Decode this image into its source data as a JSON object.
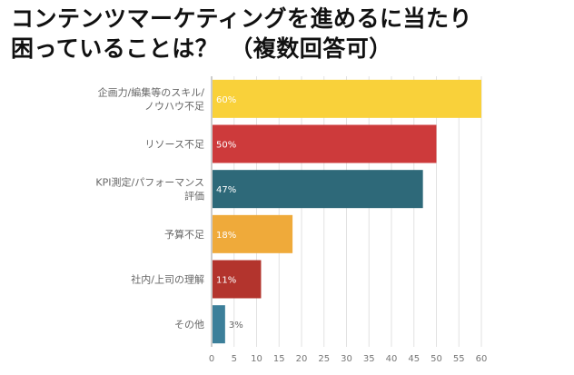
{
  "title_lines": [
    "コンテンツマーケティングを進めるに当たり",
    "困っていることは？　（複数回答可）"
  ],
  "chart_data": {
    "type": "bar",
    "orientation": "horizontal",
    "title": "コンテンツマーケティングを進めるに当たり困っていることは？　（複数回答可）",
    "categories": [
      [
        "企画力/編集等のスキル/",
        "ノウハウ不足"
      ],
      [
        "リソース不足"
      ],
      [
        "KPI測定/パフォーマンス",
        "評価"
      ],
      [
        "予算不足"
      ],
      [
        "社内/上司の理解"
      ],
      [
        "その他"
      ]
    ],
    "values": [
      60,
      50,
      47,
      18,
      11,
      3
    ],
    "value_labels": [
      "60%",
      "50%",
      "47%",
      "18%",
      "11%",
      "3%"
    ],
    "colors": [
      "#f9d13a",
      "#cd3a3b",
      "#2e6979",
      "#efaa3a",
      "#b3342d",
      "#3c7f9a"
    ],
    "xlim": [
      0,
      60
    ],
    "xticks": [
      0,
      5,
      10,
      15,
      20,
      25,
      30,
      35,
      40,
      45,
      50,
      55,
      60
    ],
    "grid": true
  }
}
